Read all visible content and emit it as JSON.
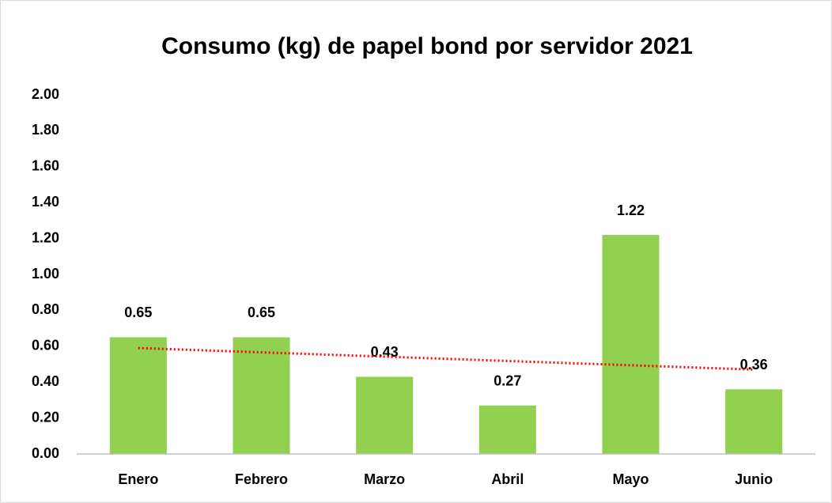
{
  "chart_data": {
    "type": "bar",
    "title": "Consumo (kg) de papel bond por servidor 2021",
    "categories": [
      "Enero",
      "Febrero",
      "Marzo",
      "Abril",
      "Mayo",
      "Junio"
    ],
    "values": [
      0.65,
      0.65,
      0.43,
      0.27,
      1.22,
      0.36
    ],
    "color": "#92d050",
    "ylim": [
      0,
      2
    ],
    "yticks": [
      {
        "value": 0,
        "label": "0.00"
      },
      {
        "value": 0.2,
        "label": "0.20"
      },
      {
        "value": 0.4,
        "label": "0.40"
      },
      {
        "value": 0.6,
        "label": "0.60"
      },
      {
        "value": 0.8,
        "label": "0.80"
      },
      {
        "value": 1,
        "label": "1.00"
      },
      {
        "value": 1.2,
        "label": "1.20"
      },
      {
        "value": 1.4,
        "label": "1.40"
      },
      {
        "value": 1.6,
        "label": "1.60"
      },
      {
        "value": 1.8,
        "label": "1.80"
      },
      {
        "value": 2,
        "label": "2.00"
      }
    ],
    "grid": false,
    "trendline": {
      "color": "#ff0000",
      "values": [
        0.59,
        0.566,
        0.542,
        0.518,
        0.494,
        0.47
      ]
    }
  }
}
